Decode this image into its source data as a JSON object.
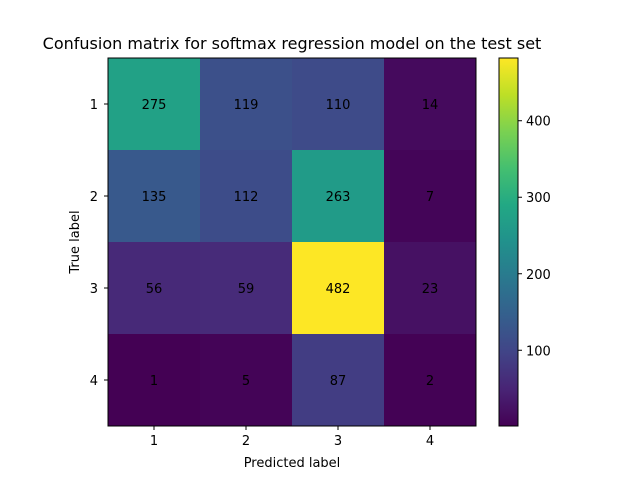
{
  "chart_data": {
    "type": "heatmap",
    "title": "Confusion matrix for softmax regression model on the test set",
    "xlabel": "Predicted label",
    "ylabel": "True label",
    "x_categories": [
      "1",
      "2",
      "3",
      "4"
    ],
    "y_categories": [
      "1",
      "2",
      "3",
      "4"
    ],
    "values": [
      [
        275,
        119,
        110,
        14
      ],
      [
        135,
        112,
        263,
        7
      ],
      [
        56,
        59,
        482,
        23
      ],
      [
        1,
        5,
        87,
        2
      ]
    ],
    "colormap": "viridis",
    "colorbar": {
      "range": [
        1,
        482
      ],
      "ticks": [
        100,
        200,
        300,
        400
      ]
    },
    "label_colors": {
      "light": "#fde725",
      "dark": "#440154"
    }
  }
}
